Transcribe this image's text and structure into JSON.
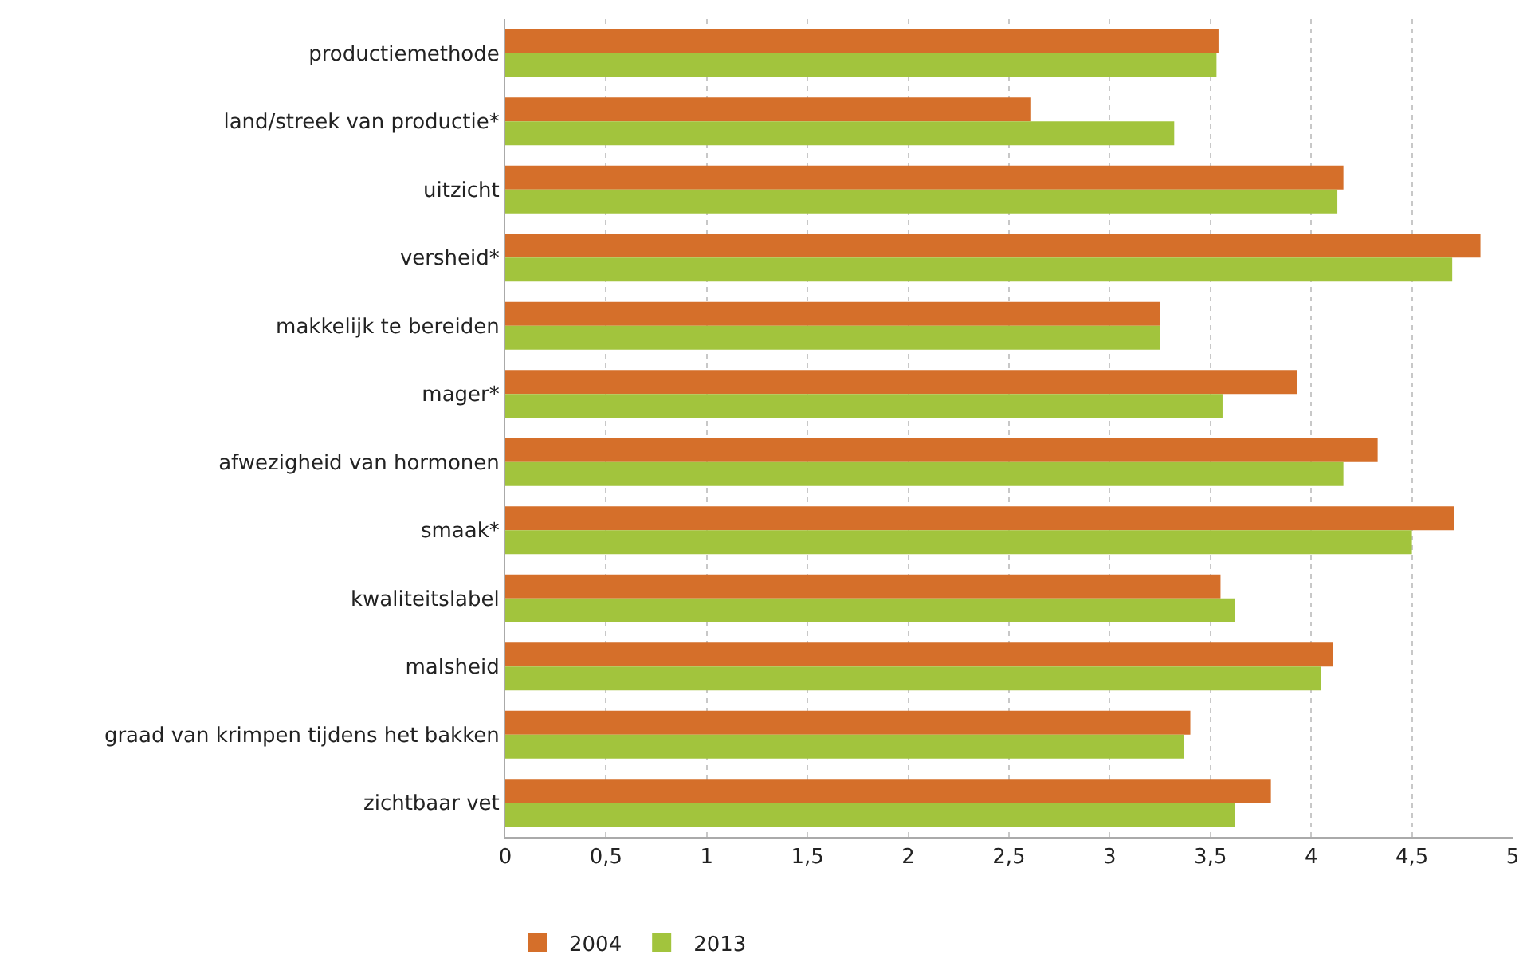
{
  "chart_data": {
    "type": "bar",
    "orientation": "horizontal",
    "categories": [
      "productiemethode",
      "land/streek van productie*",
      "uitzicht",
      "versheid*",
      "makkelijk te bereiden",
      "mager*",
      "afwezigheid van hormonen",
      "smaak*",
      "kwaliteitslabel",
      "malsheid",
      "graad van krimpen tijdens het bakken",
      "zichtbaar vet"
    ],
    "series": [
      {
        "name": "2004",
        "color": "#d56f2a",
        "values": [
          3.54,
          2.61,
          4.16,
          4.84,
          3.25,
          3.93,
          4.33,
          4.71,
          3.55,
          4.11,
          3.4,
          3.8
        ]
      },
      {
        "name": "2013",
        "color": "#a2c43d",
        "values": [
          3.53,
          3.32,
          4.13,
          4.7,
          3.25,
          3.56,
          4.16,
          4.5,
          3.62,
          4.05,
          3.37,
          3.62
        ]
      }
    ],
    "xlim": [
      0,
      5
    ],
    "xticks": [
      0,
      {
        "value": 0.5,
        "label": "0,5"
      },
      1,
      {
        "value": 1.5,
        "label": "1,5"
      },
      2,
      {
        "value": 2.5,
        "label": "2,5"
      },
      3,
      {
        "value": 3.5,
        "label": "3,5"
      },
      4,
      {
        "value": 4.5,
        "label": "4,5"
      },
      5
    ],
    "grid": "x",
    "legend": "bottom left"
  }
}
